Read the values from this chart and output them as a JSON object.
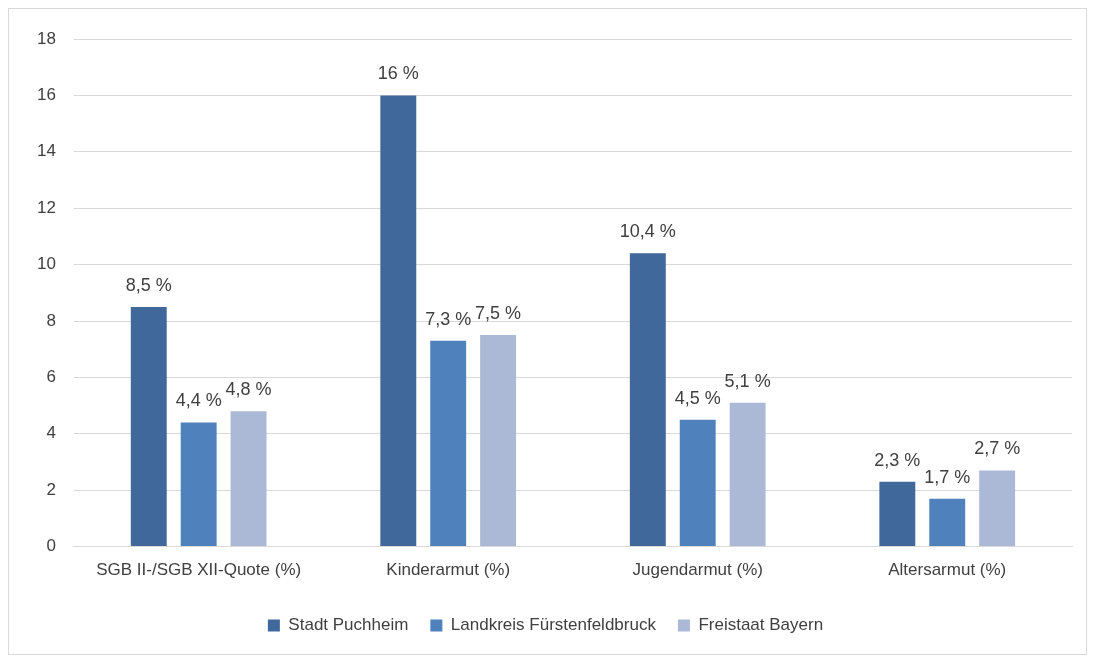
{
  "chart_data": {
    "type": "bar",
    "categories": [
      "SGB II-/SGB XII-Quote (%)",
      "Kinderarmut (%)",
      "Jugendarmut (%)",
      "Altersarmut (%)"
    ],
    "series": [
      {
        "name": "Stadt Puchheim",
        "color": "#41689a",
        "values": [
          8.5,
          16,
          10.4,
          2.3
        ],
        "value_labels": [
          "8,5 %",
          "16 %",
          "10,4 %",
          "2,3 %"
        ]
      },
      {
        "name": "Landkreis Fürstenfeldbruck",
        "color": "#4f81bd",
        "values": [
          4.4,
          7.3,
          4.5,
          1.7
        ],
        "value_labels": [
          "4,4 %",
          "7,3 %",
          "4,5 %",
          "1,7 %"
        ]
      },
      {
        "name": "Freistaat Bayern",
        "color": "#abb9d7",
        "values": [
          4.8,
          7.5,
          5.1,
          2.7
        ],
        "value_labels": [
          "4,8 %",
          "7,5 %",
          "5,1 %",
          "2,7 %"
        ]
      }
    ],
    "ylim": [
      0,
      18
    ],
    "yticks": [
      0,
      2,
      4,
      6,
      8,
      10,
      12,
      14,
      16,
      18
    ],
    "grid": "y",
    "legend": "bottom"
  }
}
